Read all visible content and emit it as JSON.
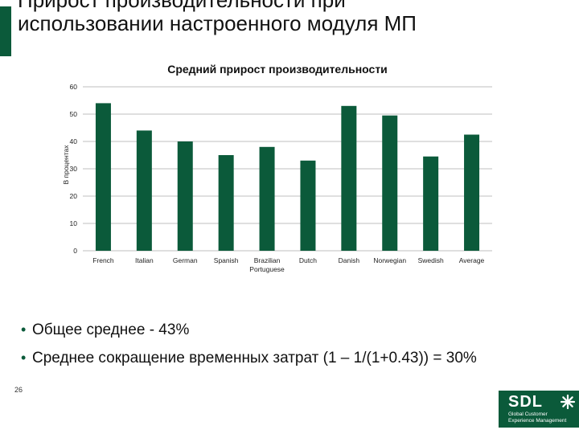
{
  "slide": {
    "title": "Прирост производительности при использовании настроенного модуля МП",
    "page_number": "26",
    "bullets": [
      "Общее среднее - 43%",
      "Среднее сокращение временных затрат (1 – 1/(1+0.43)) = 30%"
    ],
    "logo": {
      "word": "SDL",
      "tagline": [
        "Global Customer",
        "Experience Management"
      ]
    }
  },
  "colors": {
    "bar": "#0b5a3a",
    "accent": "#0b5a3a",
    "grid": "#bfbfbf"
  },
  "chart_data": {
    "type": "bar",
    "title": "Средний прирост производительности",
    "ylabel": "В процентах",
    "xlabel": "",
    "categories": [
      "French",
      "Italian",
      "German",
      "Spanish",
      "Brazilian Portuguese",
      "Dutch",
      "Danish",
      "Norwegian",
      "Swedish",
      "Average"
    ],
    "values": [
      54,
      44,
      40,
      35,
      38,
      33,
      53,
      49.5,
      34.5,
      42.5
    ],
    "ylim": [
      0,
      60
    ],
    "yticks": [
      0,
      10,
      20,
      30,
      40,
      50,
      60
    ],
    "grid": true
  }
}
